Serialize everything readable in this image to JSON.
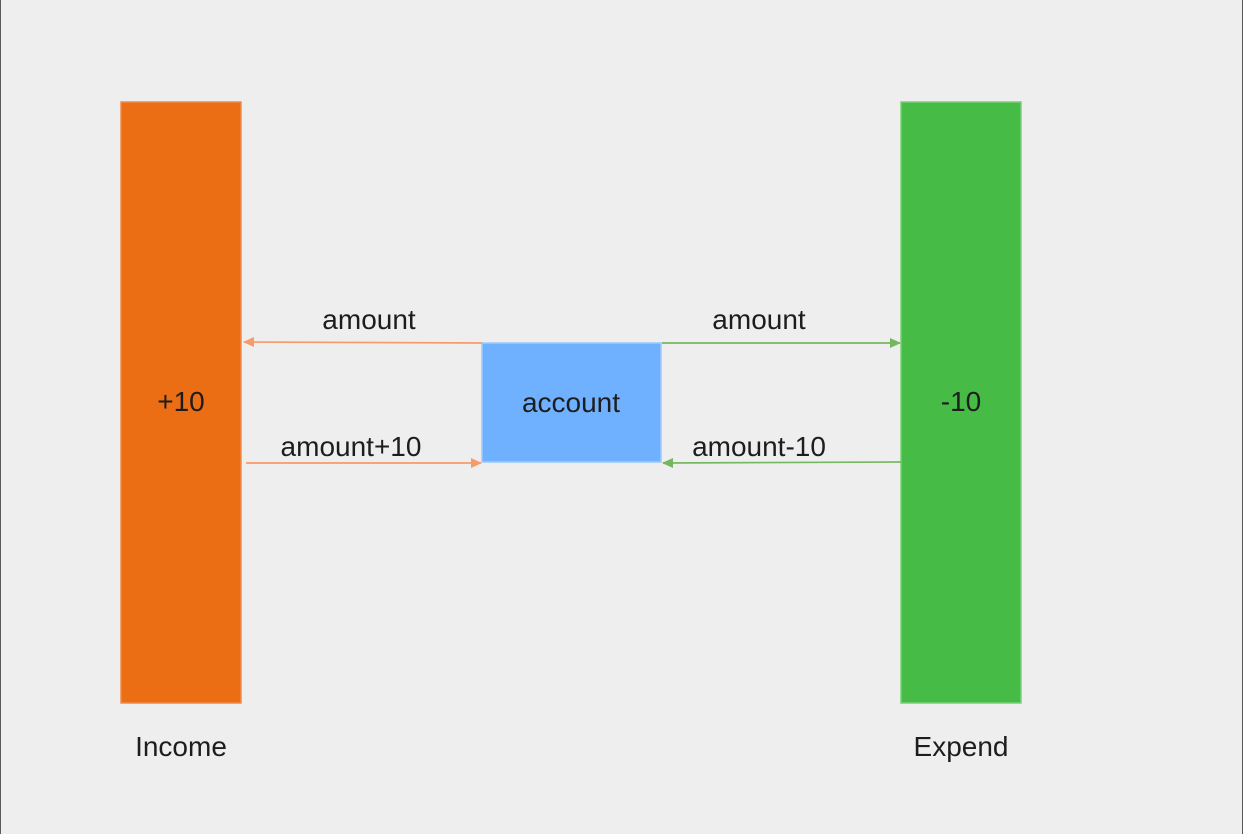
{
  "diagram": {
    "nodes": {
      "income": {
        "value": "+10",
        "caption": "Income",
        "color": "#eb6d14",
        "border": "#f08b4a"
      },
      "account": {
        "label": "account",
        "color": "#70b1ff",
        "border": "#9ccaff"
      },
      "expend": {
        "value": "-10",
        "caption": "Expend",
        "color": "#46bb46",
        "border": "#78d078"
      }
    },
    "edges": {
      "account_to_income": {
        "label": "amount",
        "color": "#f79a6a"
      },
      "income_to_account": {
        "label": "amount+10",
        "color": "#f79a6a"
      },
      "account_to_expend": {
        "label": "amount",
        "color": "#75b75e"
      },
      "expend_to_account": {
        "label": "amount-10",
        "color": "#75b75e"
      }
    }
  }
}
